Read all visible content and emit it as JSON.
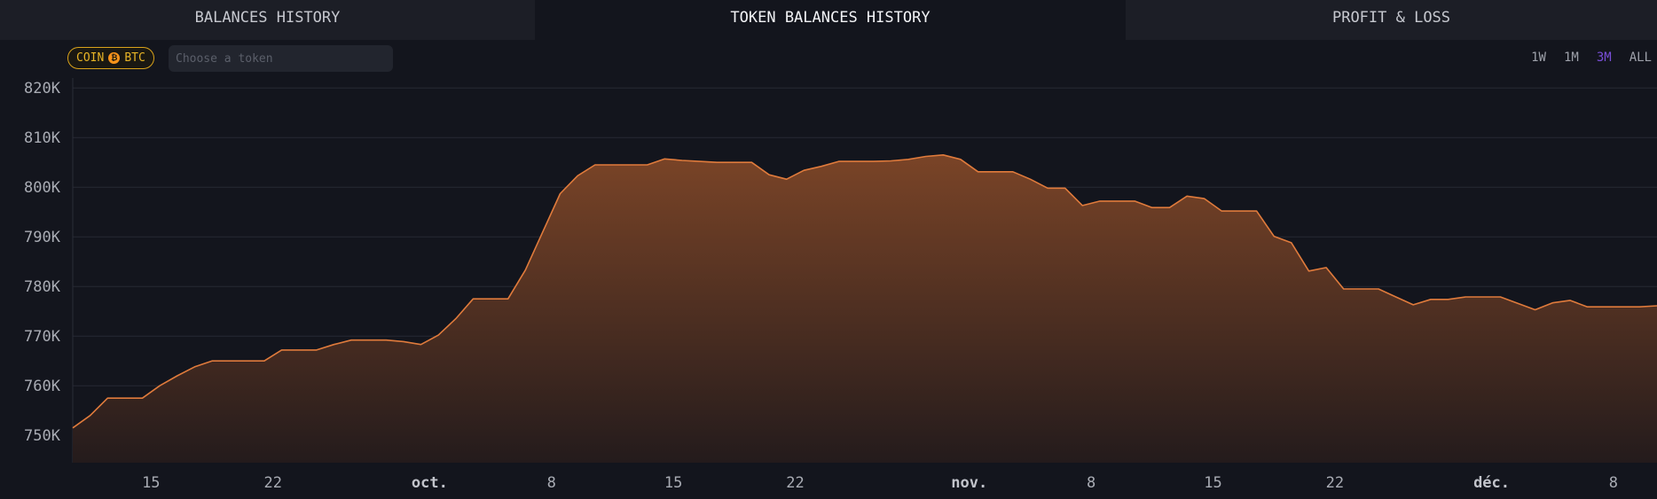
{
  "tabs": [
    {
      "label": "BALANCES HISTORY",
      "active": false
    },
    {
      "label": "TOKEN BALANCES HISTORY",
      "active": true
    },
    {
      "label": "PROFIT & LOSS",
      "active": false
    }
  ],
  "coin_badge": {
    "prefix": "COIN",
    "symbol": "BTC",
    "icon": "bitcoin-icon",
    "color": "#e8b426"
  },
  "token_search": {
    "placeholder": "Choose a token",
    "value": ""
  },
  "ranges": [
    {
      "label": "1W",
      "active": false
    },
    {
      "label": "1M",
      "active": false
    },
    {
      "label": "3M",
      "active": true
    },
    {
      "label": "ALL",
      "active": false
    }
  ],
  "chart_data": {
    "type": "area",
    "title": "",
    "xlabel": "",
    "ylabel": "",
    "ylim": [
      744500,
      822000
    ],
    "xlim": [
      0,
      91
    ],
    "y_ticks": [
      {
        "value": 750000,
        "label": "750K"
      },
      {
        "value": 760000,
        "label": "760K"
      },
      {
        "value": 770000,
        "label": "770K"
      },
      {
        "value": 780000,
        "label": "780K"
      },
      {
        "value": 790000,
        "label": "790K"
      },
      {
        "value": 800000,
        "label": "800K"
      },
      {
        "value": 810000,
        "label": "810K"
      },
      {
        "value": 820000,
        "label": "820K"
      }
    ],
    "x_ticks": [
      {
        "x": 4.5,
        "label": "15",
        "month": false
      },
      {
        "x": 11.5,
        "label": "22",
        "month": false
      },
      {
        "x": 20.5,
        "label": "oct.",
        "month": true
      },
      {
        "x": 27.5,
        "label": "8",
        "month": false
      },
      {
        "x": 34.5,
        "label": "15",
        "month": false
      },
      {
        "x": 41.5,
        "label": "22",
        "month": false
      },
      {
        "x": 51.5,
        "label": "nov.",
        "month": true
      },
      {
        "x": 58.5,
        "label": "8",
        "month": false
      },
      {
        "x": 65.5,
        "label": "15",
        "month": false
      },
      {
        "x": 72.5,
        "label": "22",
        "month": false
      },
      {
        "x": 81.5,
        "label": "déc.",
        "month": true
      },
      {
        "x": 88.5,
        "label": "8",
        "month": false
      }
    ],
    "grid": true,
    "line_color": "#e07b3c",
    "fill_top_color": "#7a4427",
    "fill_bottom_color": "#241b1c",
    "series": [
      {
        "values": [
          751500,
          754000,
          757500,
          757500,
          757500,
          760000,
          762000,
          763800,
          765000,
          765000,
          765000,
          765000,
          767200,
          767200,
          767200,
          768300,
          769200,
          769200,
          769200,
          768900,
          768300,
          770200,
          773500,
          777500,
          777500,
          777500,
          783300,
          791000,
          798700,
          802300,
          804500,
          804500,
          804500,
          804500,
          805700,
          805400,
          805200,
          805000,
          805000,
          805000,
          802500,
          801600,
          803400,
          804200,
          805200,
          805200,
          805200,
          805300,
          805600,
          806200,
          806500,
          805600,
          803100,
          803100,
          803100,
          801600,
          799800,
          799800,
          796300,
          797200,
          797200,
          797200,
          795900,
          795900,
          798200,
          797700,
          795200,
          795200,
          795200,
          790100,
          788800,
          783100,
          783800,
          779500,
          779500,
          779500,
          777900,
          776300,
          777400,
          777400,
          777900,
          777900,
          777900,
          776600,
          775300,
          776700,
          777200,
          775900,
          775900,
          775900,
          775900,
          776100
        ]
      }
    ]
  }
}
